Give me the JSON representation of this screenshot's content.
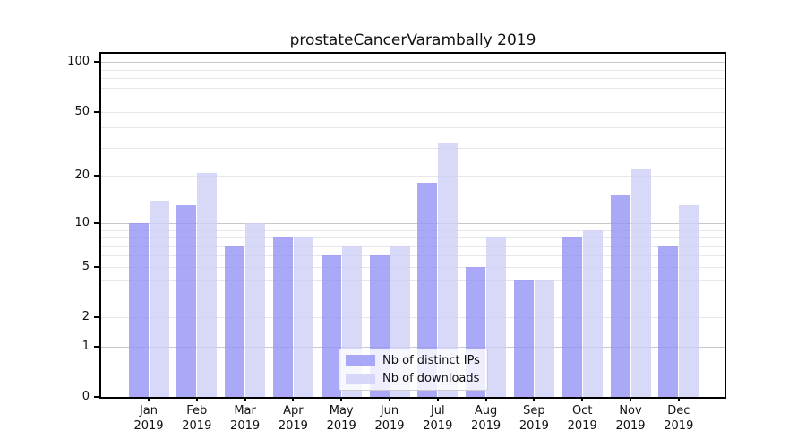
{
  "title": "prostateCancerVarambally 2019",
  "chart_data": {
    "type": "bar",
    "title": "prostateCancerVarambally 2019",
    "categories": [
      "Jan 2019",
      "Feb 2019",
      "Mar 2019",
      "Apr 2019",
      "May 2019",
      "Jun 2019",
      "Jul 2019",
      "Aug 2019",
      "Sep 2019",
      "Oct 2019",
      "Nov 2019",
      "Dec 2019"
    ],
    "x_tick_months": [
      "Jan",
      "Feb",
      "Mar",
      "Apr",
      "May",
      "Jun",
      "Jul",
      "Aug",
      "Sep",
      "Oct",
      "Nov",
      "Dec"
    ],
    "x_tick_year": "2019",
    "series": [
      {
        "name": "Nb of distinct IPs",
        "color": "#a9a9f7",
        "values": [
          10,
          13,
          7,
          8,
          6,
          6,
          18,
          5,
          4,
          8,
          15,
          7
        ]
      },
      {
        "name": "Nb of downloads",
        "color": "#d8d8f9",
        "values": [
          14,
          21,
          10,
          8,
          7,
          7,
          32,
          8,
          4,
          9,
          22,
          13
        ]
      }
    ],
    "y_scale": "log1p",
    "y_ticks": [
      0,
      1,
      2,
      5,
      10,
      20,
      50,
      100
    ],
    "y_major_gridlines": [
      1,
      10,
      100
    ],
    "y_minor_gridlines": [
      2,
      3,
      4,
      5,
      6,
      7,
      8,
      9,
      20,
      30,
      40,
      50,
      60,
      70,
      80,
      90
    ],
    "ylim": [
      0,
      112
    ],
    "grid": true,
    "legend_position": "lower center",
    "xlabel": "",
    "ylabel": ""
  },
  "colors": {
    "bar_ips": "#a9a9f7",
    "bar_downloads": "#d8d8f9",
    "gridline_major": "#c8c8c8",
    "gridline_minor": "#e7e7e7",
    "axis": "#000000",
    "text": "#111111",
    "legend_border": "#cccccc"
  },
  "legend": {
    "items": [
      {
        "label": "Nb of distinct IPs",
        "swatch": "#a9a9f7"
      },
      {
        "label": "Nb of downloads",
        "swatch": "#d8d8f9"
      }
    ]
  }
}
